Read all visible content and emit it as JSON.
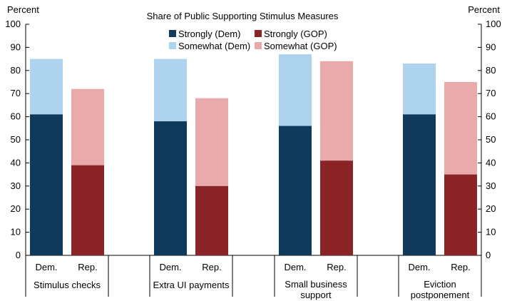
{
  "chart_data": {
    "type": "bar",
    "stacked": true,
    "title": "Share of Public Supporting Stimulus Measures",
    "ylabel_left": "Percent",
    "ylabel_right": "Percent",
    "ylim": [
      0,
      100
    ],
    "yticks": [
      0,
      10,
      20,
      30,
      40,
      50,
      60,
      70,
      80,
      90,
      100
    ],
    "groups": [
      {
        "label_lines": [
          "Stimulus checks"
        ],
        "bars": [
          {
            "label": "Dem.",
            "party": "dem",
            "strongly": 61,
            "total": 85
          },
          {
            "label": "Rep.",
            "party": "gop",
            "strongly": 39,
            "total": 72
          }
        ]
      },
      {
        "label_lines": [
          "Extra UI payments"
        ],
        "bars": [
          {
            "label": "Dem.",
            "party": "dem",
            "strongly": 58,
            "total": 85
          },
          {
            "label": "Rep.",
            "party": "gop",
            "strongly": 30,
            "total": 68
          }
        ]
      },
      {
        "label_lines": [
          "Small business",
          "support"
        ],
        "bars": [
          {
            "label": "Dem.",
            "party": "dem",
            "strongly": 56,
            "total": 87
          },
          {
            "label": "Rep.",
            "party": "gop",
            "strongly": 41,
            "total": 84
          }
        ]
      },
      {
        "label_lines": [
          "Eviction",
          "postponement"
        ],
        "bars": [
          {
            "label": "Dem.",
            "party": "dem",
            "strongly": 61,
            "total": 83
          },
          {
            "label": "Rep.",
            "party": "gop",
            "strongly": 35,
            "total": 75
          }
        ]
      }
    ],
    "legend": [
      {
        "key": "strongly_dem",
        "label": "Strongly (Dem)"
      },
      {
        "key": "strongly_gop",
        "label": "Strongly (GOP)"
      },
      {
        "key": "somewhat_dem",
        "label": "Somewhat (Dem)"
      },
      {
        "key": "somewhat_gop",
        "label": "Somewhat (GOP)"
      }
    ],
    "colors": {
      "strongly_dem": "#0f3a5c",
      "somewhat_dem": "#aed3ee",
      "strongly_gop": "#8b2426",
      "somewhat_gop": "#e8aaab"
    }
  }
}
